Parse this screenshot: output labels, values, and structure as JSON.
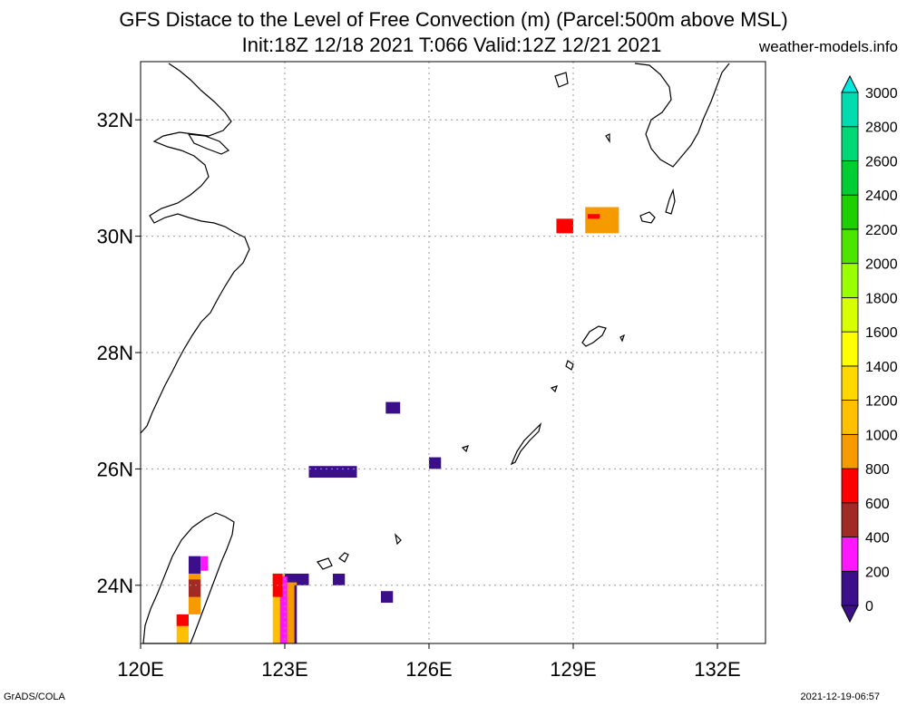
{
  "title_line1": "GFS Distace to the Level of Free Convection (m) (Parcel:500m above MSL)",
  "title_line2": "Init:18Z 12/18 2021 T:066 Valid:12Z 12/21 2021",
  "site": "weather-models.info",
  "footer_left": "GrADS/COLA",
  "footer_right": "2021-12-19-06:57",
  "map": {
    "lon_range": [
      120,
      133
    ],
    "lat_range": [
      23,
      33
    ],
    "lon_ticks": [
      {
        "value": 120,
        "label": "120E"
      },
      {
        "value": 123,
        "label": "123E"
      },
      {
        "value": 126,
        "label": "126E"
      },
      {
        "value": 129,
        "label": "129E"
      },
      {
        "value": 132,
        "label": "132E"
      }
    ],
    "lat_ticks": [
      {
        "value": 24,
        "label": "24N"
      },
      {
        "value": 26,
        "label": "26N"
      },
      {
        "value": 28,
        "label": "28N"
      },
      {
        "value": 30,
        "label": "30N"
      },
      {
        "value": 32,
        "label": "32N"
      }
    ],
    "grid": true
  },
  "colorbar": {
    "labels": [
      "0",
      "200",
      "400",
      "600",
      "800",
      "1000",
      "1200",
      "1400",
      "1600",
      "1800",
      "2000",
      "2200",
      "2400",
      "2600",
      "2800",
      "3000"
    ],
    "colors": [
      "#3c0f8a",
      "#ff18ff",
      "#a12a25",
      "#ff0000",
      "#f59b00",
      "#ffc000",
      "#ffd800",
      "#ffff00",
      "#d8ff00",
      "#9aff00",
      "#4de400",
      "#1fd000",
      "#00cc33",
      "#00d878",
      "#00dcb0",
      "#00e8e0"
    ],
    "under_color": "#3c0f8a",
    "over_color": "#00e8e0"
  },
  "cells": [
    {
      "lon0": 128.65,
      "lon1": 129.0,
      "lat0": 30.05,
      "lat1": 30.3,
      "color": "#ff0000"
    },
    {
      "lon0": 129.25,
      "lon1": 129.95,
      "lat0": 30.05,
      "lat1": 30.5,
      "color": "#f59b00"
    },
    {
      "lon0": 129.3,
      "lon1": 129.55,
      "lat0": 30.3,
      "lat1": 30.38,
      "color": "#ff0000"
    },
    {
      "lon0": 125.1,
      "lon1": 125.4,
      "lat0": 26.95,
      "lat1": 27.15,
      "color": "#3c0f8a"
    },
    {
      "lon0": 123.5,
      "lon1": 124.5,
      "lat0": 25.85,
      "lat1": 26.05,
      "color": "#3c0f8a"
    },
    {
      "lon0": 126.0,
      "lon1": 126.25,
      "lat0": 26.0,
      "lat1": 26.2,
      "color": "#3c0f8a"
    },
    {
      "lon0": 124.0,
      "lon1": 124.25,
      "lat0": 24.0,
      "lat1": 24.2,
      "color": "#3c0f8a"
    },
    {
      "lon0": 125.0,
      "lon1": 125.25,
      "lat0": 23.7,
      "lat1": 23.9,
      "color": "#3c0f8a"
    },
    {
      "lon0": 122.75,
      "lon1": 123.5,
      "lat0": 24.0,
      "lat1": 24.2,
      "color": "#3c0f8a"
    },
    {
      "lon0": 122.75,
      "lon1": 123.0,
      "lat0": 23.0,
      "lat1": 24.2,
      "color": "#ffc000"
    },
    {
      "lon0": 123.0,
      "lon1": 123.25,
      "lat0": 23.0,
      "lat1": 24.05,
      "color": "#f59b00"
    },
    {
      "lon0": 122.9,
      "lon1": 123.05,
      "lat0": 23.0,
      "lat1": 24.15,
      "color": "#ff18ff"
    },
    {
      "lon0": 122.75,
      "lon1": 122.95,
      "lat0": 23.8,
      "lat1": 24.2,
      "color": "#ff0000"
    },
    {
      "lon0": 123.2,
      "lon1": 123.25,
      "lat0": 23.0,
      "lat1": 24.0,
      "color": "#3c0f8a"
    },
    {
      "lon0": 120.75,
      "lon1": 121.0,
      "lat0": 23.0,
      "lat1": 23.5,
      "color": "#ffc000"
    },
    {
      "lon0": 120.75,
      "lon1": 121.0,
      "lat0": 23.3,
      "lat1": 23.5,
      "color": "#ff0000"
    },
    {
      "lon0": 121.0,
      "lon1": 121.25,
      "lat0": 23.5,
      "lat1": 24.5,
      "color": "#f59b00"
    },
    {
      "lon0": 121.0,
      "lon1": 121.25,
      "lat0": 24.2,
      "lat1": 24.5,
      "color": "#3c0f8a"
    },
    {
      "lon0": 121.25,
      "lon1": 121.4,
      "lat0": 24.25,
      "lat1": 24.5,
      "color": "#ff18ff"
    },
    {
      "lon0": 121.0,
      "lon1": 121.25,
      "lat0": 23.8,
      "lat1": 24.1,
      "color": "#a12a25"
    }
  ]
}
